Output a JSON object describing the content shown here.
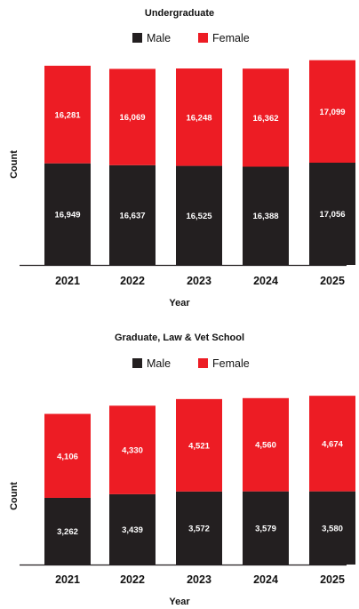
{
  "chart_data": [
    {
      "type": "bar",
      "stacked": true,
      "title": "Undergraduate",
      "xlabel": "Year",
      "ylabel": "Count",
      "categories": [
        "2021",
        "2022",
        "2023",
        "2024",
        "2025"
      ],
      "ylim": [
        0,
        35000
      ],
      "grid": false,
      "legend": "top-center",
      "series": [
        {
          "name": "Male",
          "color": "#231f20",
          "values": [
            16949,
            16637,
            16525,
            16388,
            17056
          ],
          "labels": [
            "16,949",
            "16,637",
            "16,525",
            "16,388",
            "17,056"
          ]
        },
        {
          "name": "Female",
          "color": "#ed1c24",
          "values": [
            16281,
            16069,
            16248,
            16362,
            17099
          ],
          "labels": [
            "16,281",
            "16,069",
            "16,248",
            "16,362",
            "17,099"
          ]
        }
      ]
    },
    {
      "type": "bar",
      "stacked": true,
      "title": "Graduate, Law & Vet School",
      "xlabel": "Year",
      "ylabel": "Count",
      "categories": [
        "2021",
        "2022",
        "2023",
        "2024",
        "2025"
      ],
      "ylim": [
        0,
        9000
      ],
      "grid": false,
      "legend": "top-center",
      "series": [
        {
          "name": "Male",
          "color": "#231f20",
          "values": [
            3262,
            3439,
            3572,
            3579,
            3580
          ],
          "labels": [
            "3,262",
            "3,439",
            "3,572",
            "3,579",
            "3,580"
          ]
        },
        {
          "name": "Female",
          "color": "#ed1c24",
          "values": [
            4106,
            4330,
            4521,
            4560,
            4674
          ],
          "labels": [
            "4,106",
            "4,330",
            "4,521",
            "4,560",
            "4,674"
          ]
        }
      ]
    }
  ]
}
